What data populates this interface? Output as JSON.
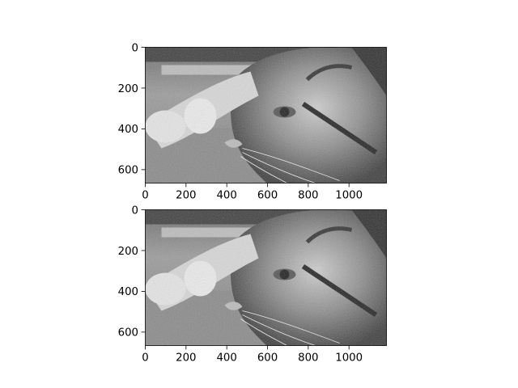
{
  "chart_data": [
    {
      "type": "heatmap",
      "title": "",
      "xlabel": "",
      "ylabel": "",
      "xlim": [
        0,
        1184
      ],
      "ylim": [
        666,
        0
      ],
      "xticks": [
        0,
        200,
        400,
        600,
        800,
        1000
      ],
      "yticks": [
        0,
        200,
        400,
        600
      ],
      "colormap": "gray",
      "legend": "none",
      "grid": false
    },
    {
      "type": "heatmap",
      "title": "",
      "xlabel": "",
      "ylabel": "",
      "xlim": [
        0,
        1184
      ],
      "ylim": [
        666,
        0
      ],
      "xticks": [
        0,
        200,
        400,
        600,
        800,
        1000
      ],
      "yticks": [
        0,
        200,
        400,
        600
      ],
      "colormap": "gray",
      "legend": "none",
      "grid": false
    }
  ]
}
